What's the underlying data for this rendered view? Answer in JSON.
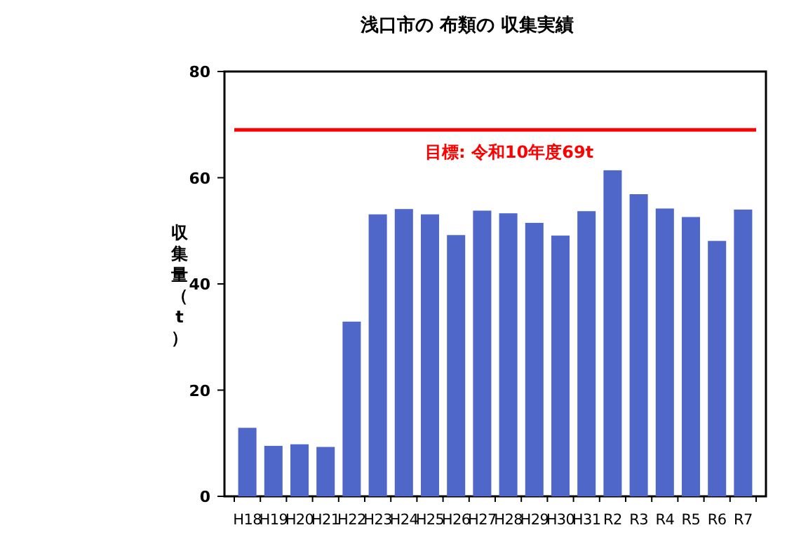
{
  "chart_data": {
    "type": "bar",
    "title": "浅口市の 布類の 収集実績",
    "ylabel": "収集量（t）",
    "categories": [
      "H18",
      "H19",
      "H20",
      "H21",
      "H22",
      "H23",
      "H24",
      "H25",
      "H26",
      "H27",
      "H28",
      "H29",
      "H30",
      "H31",
      "R2",
      "R3",
      "R4",
      "R5",
      "R6",
      "R7"
    ],
    "values": [
      12.9,
      9.5,
      9.8,
      9.3,
      32.9,
      53.1,
      54.1,
      53.1,
      49.2,
      53.8,
      53.3,
      51.5,
      49.1,
      53.7,
      61.4,
      56.9,
      54.2,
      52.6,
      48.1,
      54.0
    ],
    "color": "#4f67c8",
    "ylim": [
      0,
      80
    ],
    "yticks": [
      0,
      20,
      40,
      60,
      80
    ],
    "ref_lines": [
      {
        "axis": "y",
        "value": 69,
        "label": "目標: 令和10年度69t",
        "color": "#ff0000"
      }
    ]
  }
}
